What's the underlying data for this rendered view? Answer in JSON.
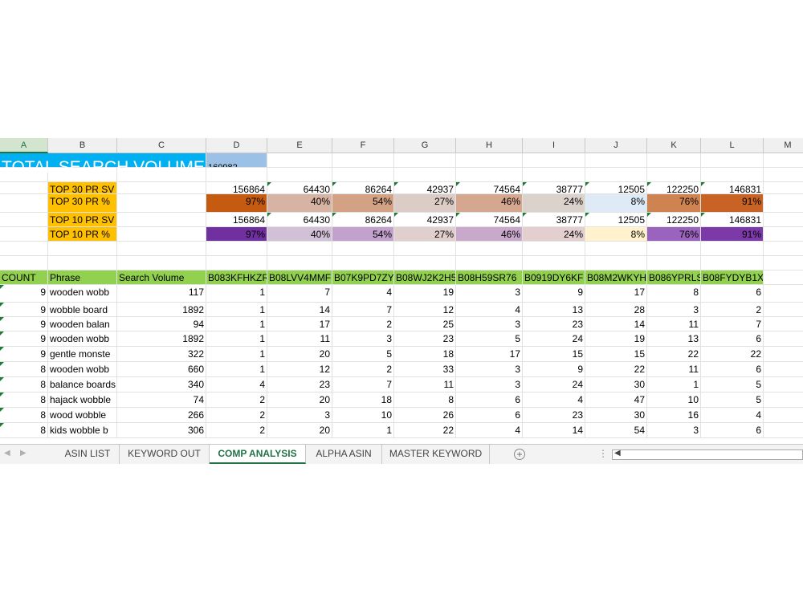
{
  "columns": [
    "A",
    "B",
    "C",
    "D",
    "E",
    "F",
    "G",
    "H",
    "I",
    "J",
    "K",
    "L",
    "M"
  ],
  "selected_column": "A",
  "total": {
    "label": "TOTAL SEARCH VOLUME",
    "value": "160982"
  },
  "summary_rows": [
    {
      "label": "TOP 30 PR SV",
      "values": [
        "156864",
        "64430",
        "86264",
        "42937",
        "74564",
        "38777",
        "12505",
        "122250",
        "146831"
      ],
      "colors": []
    },
    {
      "label": "TOP 30 PR %",
      "values": [
        "97%",
        "40%",
        "54%",
        "27%",
        "46%",
        "24%",
        "8%",
        "76%",
        "91%"
      ],
      "colors": [
        "#c55a11",
        "#d6b3a2",
        "#d3a285",
        "#dcccc6",
        "#d4a78e",
        "#dcd2cc",
        "#deebf7",
        "#cf8351",
        "#c96325"
      ]
    },
    {
      "label": "TOP 10 PR SV",
      "values": [
        "156864",
        "64430",
        "86264",
        "42937",
        "74564",
        "38777",
        "12505",
        "122250",
        "146831"
      ],
      "colors": []
    },
    {
      "label": "TOP 10 PR %",
      "values": [
        "97%",
        "40%",
        "54%",
        "27%",
        "46%",
        "24%",
        "8%",
        "76%",
        "91%"
      ],
      "colors": [
        "#7030a0",
        "#d1c0d6",
        "#c2a2cc",
        "#e1cfcd",
        "#c8a9cb",
        "#e3cfd0",
        "#fff2cc",
        "#9a63bd",
        "#7c3aa9"
      ]
    }
  ],
  "table_header": [
    "COUNT",
    "Phrase",
    "Search Volume",
    "B083KFHKZR",
    "B08LVV4MMF",
    "B07K9PD7ZY",
    "B08WJ2K2H5",
    "B08H59SR76",
    "B0919DY6KF",
    "B08M2WKYH.",
    "B086YPRLS(",
    "B08FYDYB1X"
  ],
  "rows": [
    {
      "count": "9",
      "phrase": "wooden wobb",
      "sv": "117",
      "ranks": [
        "1",
        "7",
        "4",
        "19",
        "3",
        "9",
        "17",
        "8",
        "6"
      ]
    },
    {
      "count": "9",
      "phrase": "wobble board",
      "sv": "1892",
      "ranks": [
        "1",
        "14",
        "7",
        "12",
        "4",
        "13",
        "28",
        "3",
        "2"
      ]
    },
    {
      "count": "9",
      "phrase": "wooden balan",
      "sv": "94",
      "ranks": [
        "1",
        "17",
        "2",
        "25",
        "3",
        "23",
        "14",
        "11",
        "7"
      ]
    },
    {
      "count": "9",
      "phrase": "wooden wobb",
      "sv": "1892",
      "ranks": [
        "1",
        "11",
        "3",
        "23",
        "5",
        "24",
        "19",
        "13",
        "6"
      ]
    },
    {
      "count": "9",
      "phrase": "gentle monste",
      "sv": "322",
      "ranks": [
        "1",
        "20",
        "5",
        "18",
        "17",
        "15",
        "15",
        "22",
        "22"
      ]
    },
    {
      "count": "8",
      "phrase": "wooden wobb",
      "sv": "660",
      "ranks": [
        "1",
        "12",
        "2",
        "33",
        "3",
        "9",
        "22",
        "11",
        "6"
      ]
    },
    {
      "count": "8",
      "phrase": "balance boards",
      "sv": "340",
      "ranks": [
        "4",
        "23",
        "7",
        "11",
        "3",
        "24",
        "30",
        "1",
        "5"
      ]
    },
    {
      "count": "8",
      "phrase": "hajack wobble",
      "sv": "74",
      "ranks": [
        "2",
        "20",
        "18",
        "8",
        "6",
        "4",
        "47",
        "10",
        "5"
      ]
    },
    {
      "count": "8",
      "phrase": "wood wobble",
      "sv": "266",
      "ranks": [
        "2",
        "3",
        "10",
        "26",
        "6",
        "23",
        "30",
        "16",
        "4"
      ]
    },
    {
      "count": "8",
      "phrase": "kids wobble b",
      "sv": "306",
      "ranks": [
        "2",
        "20",
        "1",
        "22",
        "4",
        "14",
        "54",
        "3",
        "6"
      ]
    }
  ],
  "tabs": [
    "ASIN LIST",
    "KEYWORD OUT",
    "COMP ANALYSIS",
    "ALPHA ASIN",
    "MASTER KEYWORD"
  ],
  "active_tab": "COMP ANALYSIS",
  "icons": {
    "add_sheet": "plus-circle-icon",
    "options": "vertical-dots-icon",
    "scroll_left": "scroll-left-arrow-icon"
  }
}
